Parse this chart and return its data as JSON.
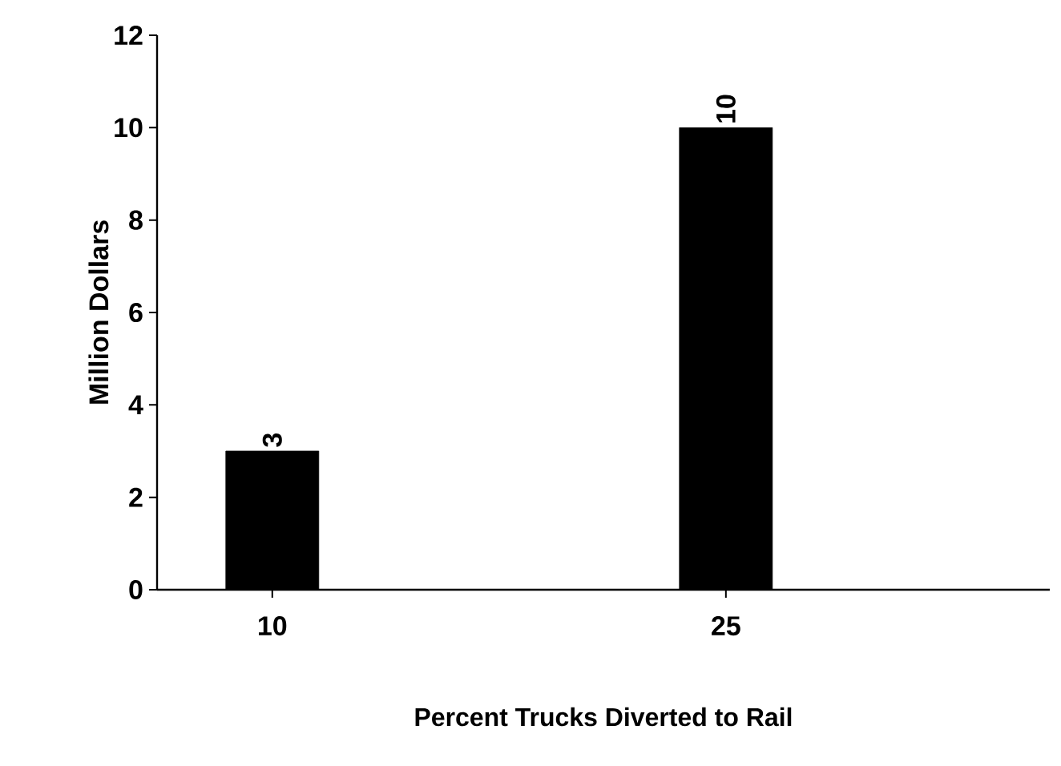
{
  "chart_data": {
    "type": "bar",
    "xlabel": "Percent Trucks Diverted to Rail",
    "ylabel": "Million  Dollars",
    "categories": [
      "10",
      "25"
    ],
    "values": [
      3,
      10
    ],
    "color": "#000000",
    "ylim": [
      0,
      12
    ],
    "yticks": [
      0,
      2,
      4,
      6,
      8,
      10,
      12
    ],
    "data_labels": true
  }
}
